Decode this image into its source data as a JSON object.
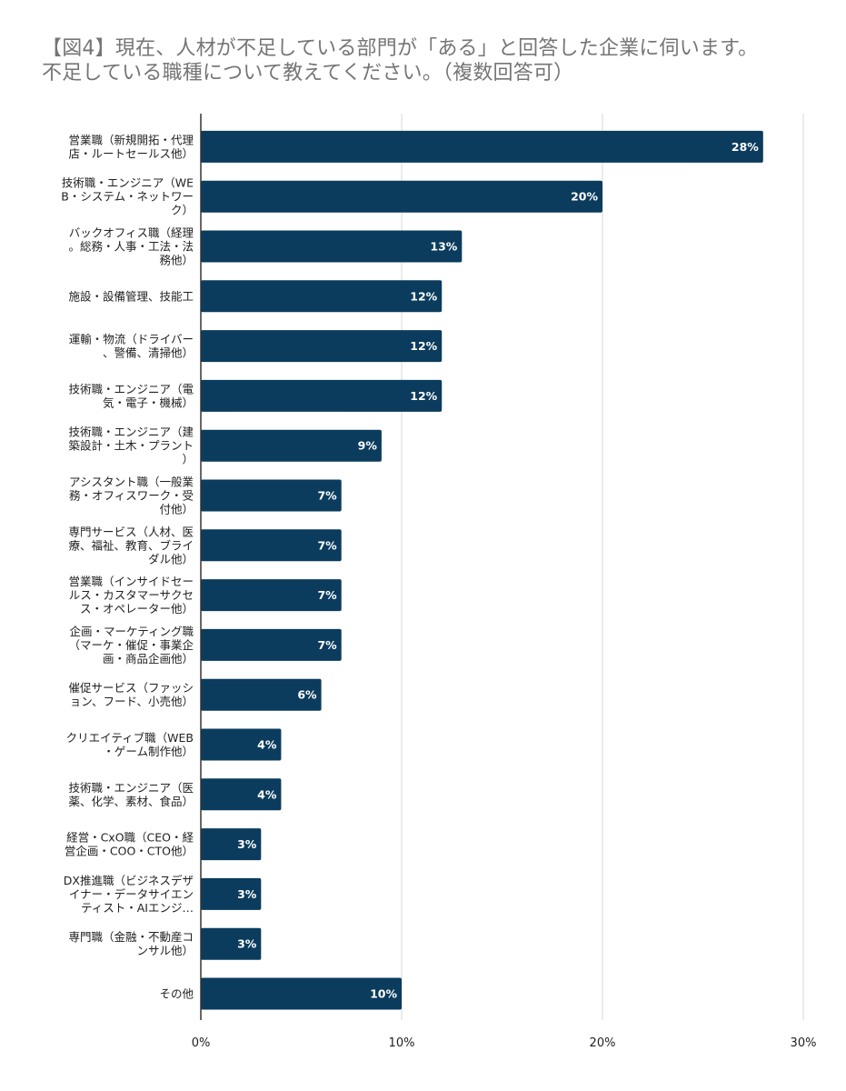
{
  "title": {
    "line1": "【図4】現在、人材が不足している部門が「ある」と回答した企業に伺います。",
    "line2": "不足している職種について教えてください。（複数回答可）"
  },
  "colors": {
    "bar": "#0b3c5d",
    "grid": "#d9d9d9",
    "axis": "#333333",
    "title": "#757575"
  },
  "chart_data": {
    "type": "bar",
    "orientation": "horizontal",
    "categories": [
      [
        "営業職（新規開拓・代理",
        "店・ルートセールス他）"
      ],
      [
        "技術職・エンジニア（WE",
        "B・システム・ネットワー",
        "ク）"
      ],
      [
        "バックオフィス職（経理",
        "。総務・人事・工法・法",
        "務他）"
      ],
      [
        "施設・設備管理、技能工"
      ],
      [
        "運輸・物流（ドライバー",
        "、警備、清掃他）"
      ],
      [
        "技術職・エンジニア（電",
        "気・電子・機械）"
      ],
      [
        "技術職・エンジニア（建",
        "築設計・土木・プラント",
        "）"
      ],
      [
        "アシスタント職（一般業",
        "務・オフィスワーク・受",
        "付他）"
      ],
      [
        "専門サービス（人材、医",
        "療、福祉、教育、ブライ",
        "ダル他）"
      ],
      [
        "営業職（インサイドセー",
        "ルス・カスタマーサクセ",
        "ス・オペレーター他）"
      ],
      [
        "企画・マーケティング職",
        "（マーケ・催促・事業企",
        "画・商品企画他）"
      ],
      [
        "催促サービス（ファッシ",
        "ョン、フード、小売他）"
      ],
      [
        "クリエイティブ職（WEB",
        "・ゲーム制作他）"
      ],
      [
        "技術職・エンジニア（医",
        "薬、化学、素材、食品）"
      ],
      [
        "経営・CxO職（CEO・経",
        "営企画・COO・CTO他）"
      ],
      [
        "DX推進職（ビジネスデザ",
        "イナー・データサイエン",
        "ティスト・AIエンジ…"
      ],
      [
        "専門職（金融・不動産コ",
        "ンサル他）"
      ],
      [
        "その他"
      ]
    ],
    "values": [
      28,
      20,
      13,
      12,
      12,
      12,
      9,
      7,
      7,
      7,
      7,
      6,
      4,
      4,
      3,
      3,
      3,
      10
    ],
    "value_labels": [
      "28%",
      "20%",
      "13%",
      "12%",
      "12%",
      "12%",
      "9%",
      "7%",
      "7%",
      "7%",
      "7%",
      "6%",
      "4%",
      "4%",
      "3%",
      "3%",
      "3%",
      "10%"
    ],
    "xticks": [
      "0%",
      "10%",
      "20%",
      "30%"
    ],
    "xlim": [
      0,
      30
    ],
    "grid": true
  }
}
